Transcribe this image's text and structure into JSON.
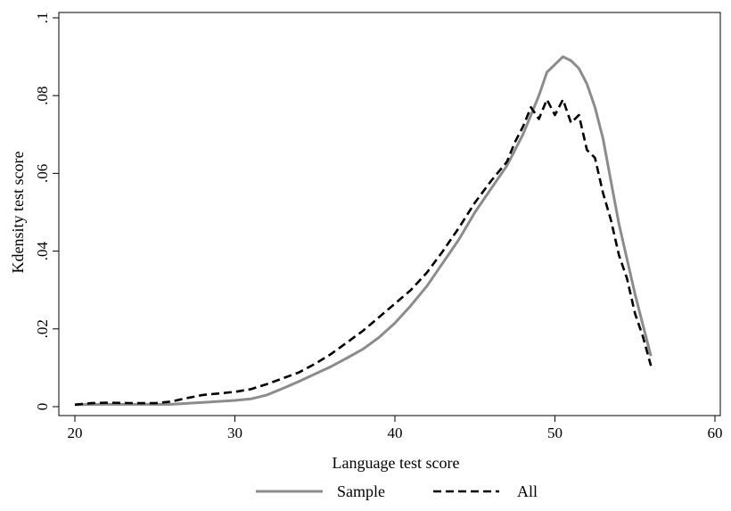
{
  "chart_data": {
    "type": "line",
    "title": "",
    "xlabel": "Language test score",
    "ylabel": "Kdensity test score",
    "xlim": [
      20,
      60
    ],
    "ylim": [
      0,
      0.1
    ],
    "x_ticks": [
      20,
      30,
      40,
      50,
      60
    ],
    "x_tick_labels": [
      "20",
      "30",
      "40",
      "50",
      "60"
    ],
    "y_ticks": [
      0,
      0.02,
      0.04,
      0.06,
      0.08,
      0.1
    ],
    "y_tick_labels": [
      "0",
      ".02",
      ".04",
      ".06",
      ".08",
      ".1"
    ],
    "grid": false,
    "legend_position": "bottom",
    "series": [
      {
        "name": "Sample",
        "color": "#8c8c8c",
        "line_style": "solid",
        "points": [
          [
            20,
            0.0005
          ],
          [
            22,
            0.0006
          ],
          [
            24,
            0.0006
          ],
          [
            26,
            0.0006
          ],
          [
            28,
            0.0011
          ],
          [
            30,
            0.0016
          ],
          [
            31,
            0.002
          ],
          [
            32,
            0.003
          ],
          [
            33,
            0.0047
          ],
          [
            34,
            0.0065
          ],
          [
            35,
            0.0084
          ],
          [
            36,
            0.0103
          ],
          [
            37,
            0.0125
          ],
          [
            38,
            0.0148
          ],
          [
            39,
            0.0178
          ],
          [
            40,
            0.0215
          ],
          [
            41,
            0.026
          ],
          [
            42,
            0.031
          ],
          [
            43,
            0.037
          ],
          [
            44,
            0.043
          ],
          [
            45,
            0.05
          ],
          [
            46,
            0.056
          ],
          [
            47,
            0.062
          ],
          [
            48,
            0.07
          ],
          [
            48.5,
            0.075
          ],
          [
            49,
            0.08
          ],
          [
            49.5,
            0.086
          ],
          [
            50,
            0.088
          ],
          [
            50.5,
            0.09
          ],
          [
            51,
            0.089
          ],
          [
            51.5,
            0.087
          ],
          [
            52,
            0.083
          ],
          [
            52.5,
            0.077
          ],
          [
            53,
            0.069
          ],
          [
            53.5,
            0.058
          ],
          [
            54,
            0.047
          ],
          [
            54.5,
            0.038
          ],
          [
            55,
            0.029
          ],
          [
            55.5,
            0.021
          ],
          [
            56,
            0.013
          ]
        ]
      },
      {
        "name": "All",
        "color": "#000000",
        "line_style": "dashed",
        "points": [
          [
            20,
            0.0005
          ],
          [
            21,
            0.0009
          ],
          [
            22,
            0.001
          ],
          [
            24,
            0.0009
          ],
          [
            25,
            0.0009
          ],
          [
            26,
            0.0013
          ],
          [
            27,
            0.0022
          ],
          [
            28,
            0.003
          ],
          [
            29,
            0.0034
          ],
          [
            30,
            0.0038
          ],
          [
            31,
            0.0045
          ],
          [
            32,
            0.0058
          ],
          [
            33,
            0.0073
          ],
          [
            34,
            0.0088
          ],
          [
            35,
            0.011
          ],
          [
            36,
            0.0135
          ],
          [
            37,
            0.0165
          ],
          [
            38,
            0.0195
          ],
          [
            39,
            0.023
          ],
          [
            40,
            0.0265
          ],
          [
            41,
            0.03
          ],
          [
            42,
            0.0345
          ],
          [
            43,
            0.04
          ],
          [
            44,
            0.046
          ],
          [
            45,
            0.0525
          ],
          [
            46,
            0.058
          ],
          [
            47,
            0.063
          ],
          [
            47.5,
            0.068
          ],
          [
            48,
            0.072
          ],
          [
            48.5,
            0.077
          ],
          [
            49,
            0.074
          ],
          [
            49.5,
            0.079
          ],
          [
            50,
            0.075
          ],
          [
            50.5,
            0.079
          ],
          [
            51,
            0.073
          ],
          [
            51.5,
            0.075
          ],
          [
            52,
            0.066
          ],
          [
            52.5,
            0.064
          ],
          [
            53,
            0.055
          ],
          [
            53.5,
            0.048
          ],
          [
            54,
            0.039
          ],
          [
            54.5,
            0.033
          ],
          [
            55,
            0.024
          ],
          [
            55.5,
            0.018
          ],
          [
            56,
            0.0105
          ]
        ]
      }
    ]
  }
}
